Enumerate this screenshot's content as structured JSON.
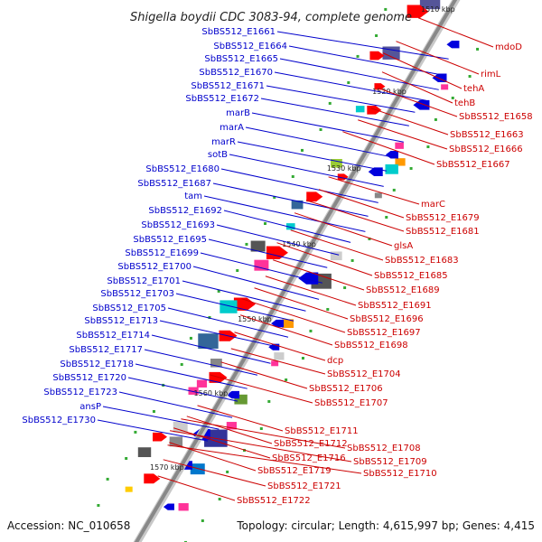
{
  "title": "Shigella boydii CDC 3083-94, complete genome",
  "footer": {
    "accession": "Accession: NC_010658",
    "topology": "Topology: circular; Length: 4,615,997 bp; Genes: 4,415"
  },
  "colors": {
    "left_label": "#0000cc",
    "right_label": "#cc0000",
    "backbone": "#888888"
  },
  "ticks": [
    "1510 kbp",
    "1520 kbp",
    "1530 kbp",
    "1540 kbp",
    "1550 kbp",
    "1560 kbp",
    "1570 kbp"
  ],
  "left_labels": [
    "SbBS512_E1661",
    "SbBS512_E1664",
    "SbBS512_E1665",
    "SbBS512_E1670",
    "SbBS512_E1671",
    "SbBS512_E1672",
    "marB",
    "marA",
    "marR",
    "sotB",
    "SbBS512_E1680",
    "SbBS512_E1687",
    "tam",
    "SbBS512_E1692",
    "SbBS512_E1693",
    "SbBS512_E1695",
    "SbBS512_E1699",
    "SbBS512_E1700",
    "SbBS512_E1701",
    "SbBS512_E1703",
    "SbBS512_E1705",
    "SbBS512_E1713",
    "SbBS512_E1714",
    "SbBS512_E1717",
    "SbBS512_E1718",
    "SbBS512_E1720",
    "SbBS512_E1723",
    "ansP",
    "SbBS512_E1730"
  ],
  "right_labels": [
    "mdoD",
    "rimL",
    "tehA",
    "tehB",
    "SbBS512_E1658",
    "SbBS512_E1663",
    "SbBS512_E1666",
    "SbBS512_E1667",
    "marC",
    "SbBS512_E1679",
    "SbBS512_E1681",
    "glsA",
    "SbBS512_E1683",
    "SbBS512_E1685",
    "SbBS512_E1689",
    "SbBS512_E1691",
    "SbBS512_E1696",
    "SbBS512_E1697",
    "SbBS512_E1698",
    "dcp",
    "SbBS512_E1704",
    "SbBS512_E1706",
    "SbBS512_E1707",
    "SbBS512_E1711",
    "SbBS512_E1712",
    "SbBS512_E1716",
    "SbBS512_E1708",
    "SbBS512_E1709",
    "SbBS512_E1710",
    "SbBS512_E1719",
    "SbBS512_E1721",
    "SbBS512_E1722"
  ]
}
